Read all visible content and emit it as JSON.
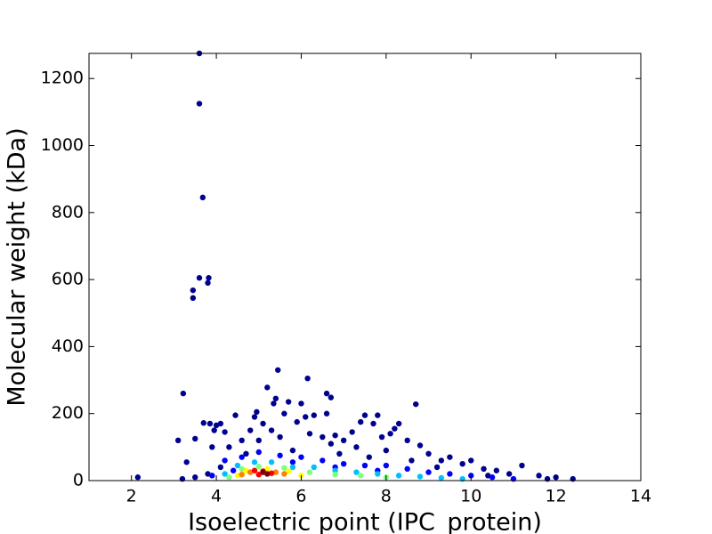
{
  "chart_data": {
    "type": "scatter",
    "x_label": "Isoelectric point (IPC_protein)",
    "y_label": "Molecular weight (kDa)",
    "xlim": [
      1,
      14
    ],
    "ylim": [
      0,
      1275
    ],
    "xticks": [
      2,
      4,
      6,
      8,
      10,
      12,
      14
    ],
    "yticks": [
      0,
      200,
      400,
      600,
      800,
      1000,
      1200
    ],
    "series": [
      {
        "color": "#00008f",
        "x": [
          3.6,
          3.6,
          3.68,
          3.6,
          3.8,
          3.82,
          3.45,
          3.45,
          3.22,
          2.15,
          5.45,
          6.15,
          6.6,
          6.7,
          8.7,
          5.2,
          6.6,
          3.1,
          3.3,
          3.5,
          3.7,
          3.85,
          3.95,
          4.0,
          4.1,
          3.9,
          4.2,
          4.45,
          4.6,
          4.8,
          4.9,
          4.95,
          5.1,
          5.3,
          5.35,
          5.4,
          5.6,
          5.7,
          5.9,
          6.0,
          6.1,
          6.3,
          6.5,
          6.8,
          7.0,
          7.2,
          7.4,
          7.5,
          7.7,
          7.8,
          7.9,
          8.1,
          8.2,
          8.3,
          8.5,
          8.8,
          9.0,
          9.3,
          9.5,
          9.8,
          10.0,
          10.3,
          10.6,
          10.9,
          11.2,
          11.6,
          12.0,
          12.4,
          3.2,
          3.5,
          4.3,
          5.0,
          5.5,
          6.2,
          6.7,
          7.3,
          8.0,
          8.6,
          9.2,
          10.4,
          11.8,
          4.7,
          5.8,
          6.9,
          7.6,
          4.1,
          3.8
        ],
        "y": [
          1275,
          1125,
          845,
          605,
          590,
          605,
          568,
          545,
          260,
          10,
          330,
          305,
          260,
          248,
          228,
          278,
          200,
          120,
          55,
          125,
          172,
          170,
          150,
          165,
          170,
          100,
          145,
          195,
          120,
          150,
          190,
          205,
          170,
          150,
          230,
          245,
          200,
          235,
          175,
          230,
          190,
          195,
          130,
          135,
          120,
          145,
          175,
          195,
          170,
          195,
          130,
          140,
          155,
          170,
          120,
          105,
          80,
          60,
          70,
          50,
          60,
          35,
          30,
          20,
          45,
          15,
          10,
          5,
          5,
          10,
          100,
          120,
          130,
          140,
          110,
          100,
          90,
          60,
          40,
          15,
          5,
          80,
          90,
          80,
          70,
          40,
          20
        ]
      },
      {
        "color": "#0000ff",
        "x": [
          4.2,
          4.6,
          5.0,
          5.5,
          6.0,
          6.5,
          7.0,
          7.5,
          8.0,
          8.5,
          9.0,
          9.5,
          10.0,
          10.5,
          11.0,
          3.9,
          4.4,
          5.8,
          7.8,
          6.8
        ],
        "y": [
          60,
          70,
          85,
          75,
          70,
          60,
          50,
          45,
          45,
          35,
          25,
          20,
          15,
          10,
          5,
          15,
          30,
          55,
          30,
          40
        ]
      },
      {
        "color": "#00bfff",
        "x": [
          4.5,
          4.9,
          5.3,
          5.8,
          6.3,
          6.8,
          7.3,
          7.8,
          8.3,
          8.8,
          9.3,
          4.2,
          9.8
        ],
        "y": [
          45,
          55,
          55,
          40,
          40,
          30,
          25,
          20,
          15,
          12,
          8,
          20,
          5
        ]
      },
      {
        "color": "#7fff7f",
        "x": [
          4.6,
          5.0,
          5.6,
          6.2,
          6.8,
          7.4,
          8.0,
          4.3
        ],
        "y": [
          35,
          42,
          38,
          25,
          18,
          15,
          10,
          10
        ]
      },
      {
        "color": "#ffff00",
        "x": [
          4.7,
          5.2,
          5.7,
          6.0,
          4.5
        ],
        "y": [
          30,
          35,
          28,
          15,
          15
        ]
      },
      {
        "color": "#ff8000",
        "x": [
          4.8,
          5.4,
          5.6,
          4.6
        ],
        "y": [
          25,
          25,
          20,
          18
        ]
      },
      {
        "color": "#ff0000",
        "x": [
          4.9,
          5.1,
          5.3,
          5.0
        ],
        "y": [
          30,
          28,
          22,
          18
        ]
      },
      {
        "color": "#800000",
        "x": [
          5.1,
          5.2
        ],
        "y": [
          25,
          20
        ]
      }
    ]
  }
}
